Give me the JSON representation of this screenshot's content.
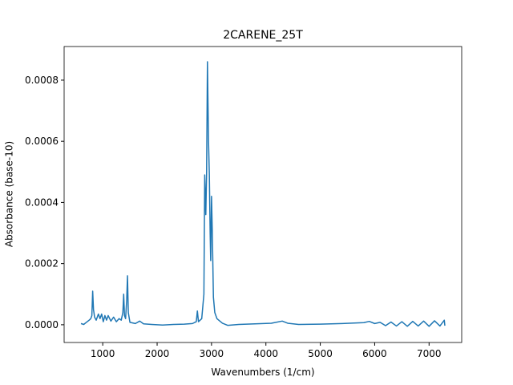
{
  "chart_data": {
    "type": "line",
    "title": "2CARENE_25T",
    "x_label": "Wavenumbers (1/cm)",
    "y_label": "Absorbance (base-10)",
    "color": "#1f77b4",
    "x": [
      600,
      650,
      700,
      750,
      780,
      800,
      815,
      830,
      850,
      880,
      920,
      950,
      980,
      1010,
      1040,
      1070,
      1100,
      1150,
      1200,
      1250,
      1300,
      1340,
      1370,
      1385,
      1400,
      1420,
      1440,
      1455,
      1470,
      1500,
      1600,
      1680,
      1750,
      1900,
      2100,
      2300,
      2500,
      2650,
      2720,
      2740,
      2760,
      2820,
      2860,
      2875,
      2895,
      2910,
      2925,
      2945,
      2960,
      2975,
      2985,
      3000,
      3015,
      3035,
      3060,
      3100,
      3200,
      3300,
      3500,
      3800,
      4100,
      4300,
      4400,
      4600,
      5000,
      5400,
      5800,
      5900,
      6000,
      6100,
      6200,
      6300,
      6400,
      6500,
      6600,
      6700,
      6800,
      6900,
      7000,
      7100,
      7200,
      7280,
      7290
    ],
    "values": [
      4e-06,
      1e-06,
      8e-06,
      1.5e-05,
      2e-05,
      3e-05,
      0.00011,
      5e-05,
      2.5e-05,
      1.5e-05,
      3.5e-05,
      2e-05,
      3.5e-05,
      1e-05,
      3e-05,
      1.5e-05,
      3e-05,
      1.2e-05,
      2.5e-05,
      1e-05,
      2e-05,
      1.5e-05,
      4e-05,
      0.0001,
      3e-05,
      2e-05,
      8e-05,
      0.00016,
      4e-05,
      8e-06,
      4e-06,
      1.2e-05,
      3e-06,
      1e-06,
      -1e-06,
      1e-06,
      2e-06,
      4e-06,
      1e-05,
      4.5e-05,
      1e-05,
      2e-05,
      0.0001,
      0.00049,
      0.00036,
      0.0005,
      0.00086,
      0.0006,
      0.00049,
      0.0003,
      0.00021,
      0.00042,
      0.0003,
      9e-05,
      4e-05,
      2e-05,
      5e-06,
      -2e-06,
      1e-06,
      3e-06,
      5e-06,
      1.2e-05,
      5e-06,
      1e-06,
      2e-06,
      4e-06,
      7e-06,
      1.1e-05,
      4e-06,
      8e-06,
      -3e-06,
      9e-06,
      -4e-06,
      1e-05,
      -5e-06,
      1.1e-05,
      -4e-06,
      1.2e-05,
      -5e-06,
      1.3e-05,
      -4e-06,
      1.5e-05,
      -3e-06
    ],
    "xlim": [
      290,
      7600
    ],
    "ylim": [
      -5.8e-05,
      0.00091
    ],
    "xticks": [
      1000,
      2000,
      3000,
      4000,
      5000,
      6000,
      7000
    ],
    "yticks": [
      {
        "value": 0,
        "label": "0.0000"
      },
      {
        "value": 0.0002,
        "label": "0.0002"
      },
      {
        "value": 0.0004,
        "label": "0.0004"
      },
      {
        "value": 0.0006,
        "label": "0.0006"
      },
      {
        "value": 0.0008,
        "label": "0.0008"
      }
    ],
    "grid": false
  }
}
